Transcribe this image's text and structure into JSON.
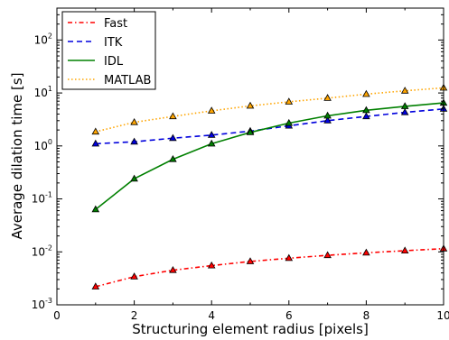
{
  "chart_data": {
    "type": "line",
    "title": "",
    "xlabel": "Structuring element radius [pixels]",
    "ylabel": "Average dilation time [s]",
    "xlim": [
      0,
      10
    ],
    "ylim": [
      0.001,
      400
    ],
    "yscale": "log",
    "grid": false,
    "legend_position": "top-left",
    "x": [
      1,
      2,
      3,
      4,
      5,
      6,
      7,
      8,
      9,
      10
    ],
    "x_ticks": [
      "0",
      "2",
      "4",
      "6",
      "8",
      "10"
    ],
    "y_ticks": [
      {
        "base": "10",
        "exp": "-3"
      },
      {
        "base": "10",
        "exp": "-2"
      },
      {
        "base": "10",
        "exp": "-1"
      },
      {
        "base": "10",
        "exp": "0"
      },
      {
        "base": "10",
        "exp": "1"
      },
      {
        "base": "10",
        "exp": "2"
      }
    ],
    "series": [
      {
        "name": "Fast",
        "color": "#ff0000",
        "dash": "dash-dot",
        "values": [
          0.0022,
          0.0034,
          0.0045,
          0.0055,
          0.0066,
          0.0076,
          0.0086,
          0.0096,
          0.0105,
          0.0115
        ]
      },
      {
        "name": "ITK",
        "color": "#0000dd",
        "dash": "dashed",
        "values": [
          1.1,
          1.2,
          1.4,
          1.6,
          1.9,
          2.4,
          3.0,
          3.6,
          4.3,
          5.0
        ]
      },
      {
        "name": "IDL",
        "color": "#008000",
        "dash": "solid",
        "values": [
          0.063,
          0.24,
          0.56,
          1.1,
          1.8,
          2.7,
          3.7,
          4.7,
          5.6,
          6.5
        ]
      },
      {
        "name": "MATLAB",
        "color": "#ffa500",
        "dash": "dotted",
        "values": [
          1.85,
          2.8,
          3.6,
          4.6,
          5.7,
          6.8,
          8.0,
          9.5,
          11.0,
          12.5
        ]
      }
    ]
  }
}
